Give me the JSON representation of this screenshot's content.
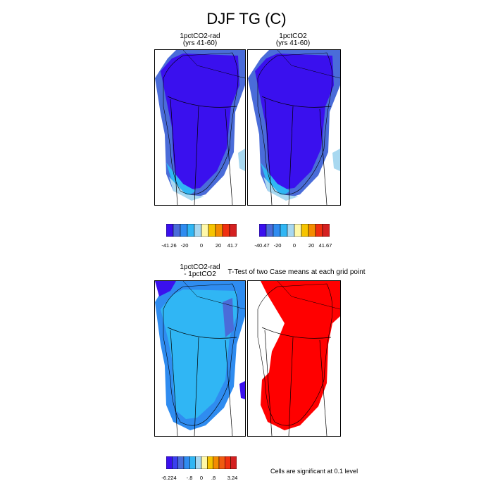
{
  "figure": {
    "title": "DJF TG (C)",
    "panels": [
      {
        "title_line1": "1pctCO2-rad",
        "title_line2": "(yrs 41-60)"
      },
      {
        "title_line1": "1pctCO2",
        "title_line2": "(yrs 41-60)"
      },
      {
        "title_line1": "1pctCO2-rad",
        "title_line2": "- 1pctCO2"
      },
      {
        "title_line1": "T-Test of two Case means at each grid point",
        "title_line2": ""
      }
    ],
    "colorbars": [
      {
        "labels": [
          "-41.26",
          "-20",
          "0",
          "20",
          "41.7"
        ]
      },
      {
        "labels": [
          "-40.47",
          "-20",
          "0",
          "20",
          "41.67"
        ]
      },
      {
        "labels": [
          "-6.224",
          "-.8",
          "0",
          ".8",
          "3.24"
        ]
      }
    ],
    "significance_note": "Cells are significant at 0.1 level",
    "colors": {
      "deep_blue": "#3a10ee",
      "mid_blue": "#4a6cd9",
      "light_blue": "#30b6f4",
      "pale_blue": "#a8d8f0",
      "significant_red": "#ff0000",
      "palette": [
        "#3a10ee",
        "#4a6cd9",
        "#2f8cf0",
        "#30b6f4",
        "#a8d8f0",
        "#fff8a8",
        "#f6c400",
        "#f48c00",
        "#f03010",
        "#d42020"
      ]
    }
  },
  "chart_data": [
    {
      "type": "heatmap",
      "title": "1pctCO2-rad (yrs 41-60)",
      "variable": "DJF TG",
      "units": "C",
      "colorbar_range": [
        -41.26,
        41.7
      ],
      "colorbar_ticks": [
        -41.26,
        -20,
        0,
        20,
        41.7
      ]
    },
    {
      "type": "heatmap",
      "title": "1pctCO2 (yrs 41-60)",
      "variable": "DJF TG",
      "units": "C",
      "colorbar_range": [
        -40.47,
        41.67
      ],
      "colorbar_ticks": [
        -40.47,
        -20,
        0,
        20,
        41.67
      ]
    },
    {
      "type": "heatmap",
      "title": "1pctCO2-rad - 1pctCO2",
      "variable": "DJF TG",
      "units": "C",
      "colorbar_range": [
        -6.224,
        3.24
      ],
      "colorbar_ticks": [
        -6.224,
        -0.8,
        0,
        0.8,
        3.24
      ]
    },
    {
      "type": "heatmap",
      "title": "T-Test of two Case means at each grid point",
      "significance_level": 0.1
    }
  ]
}
